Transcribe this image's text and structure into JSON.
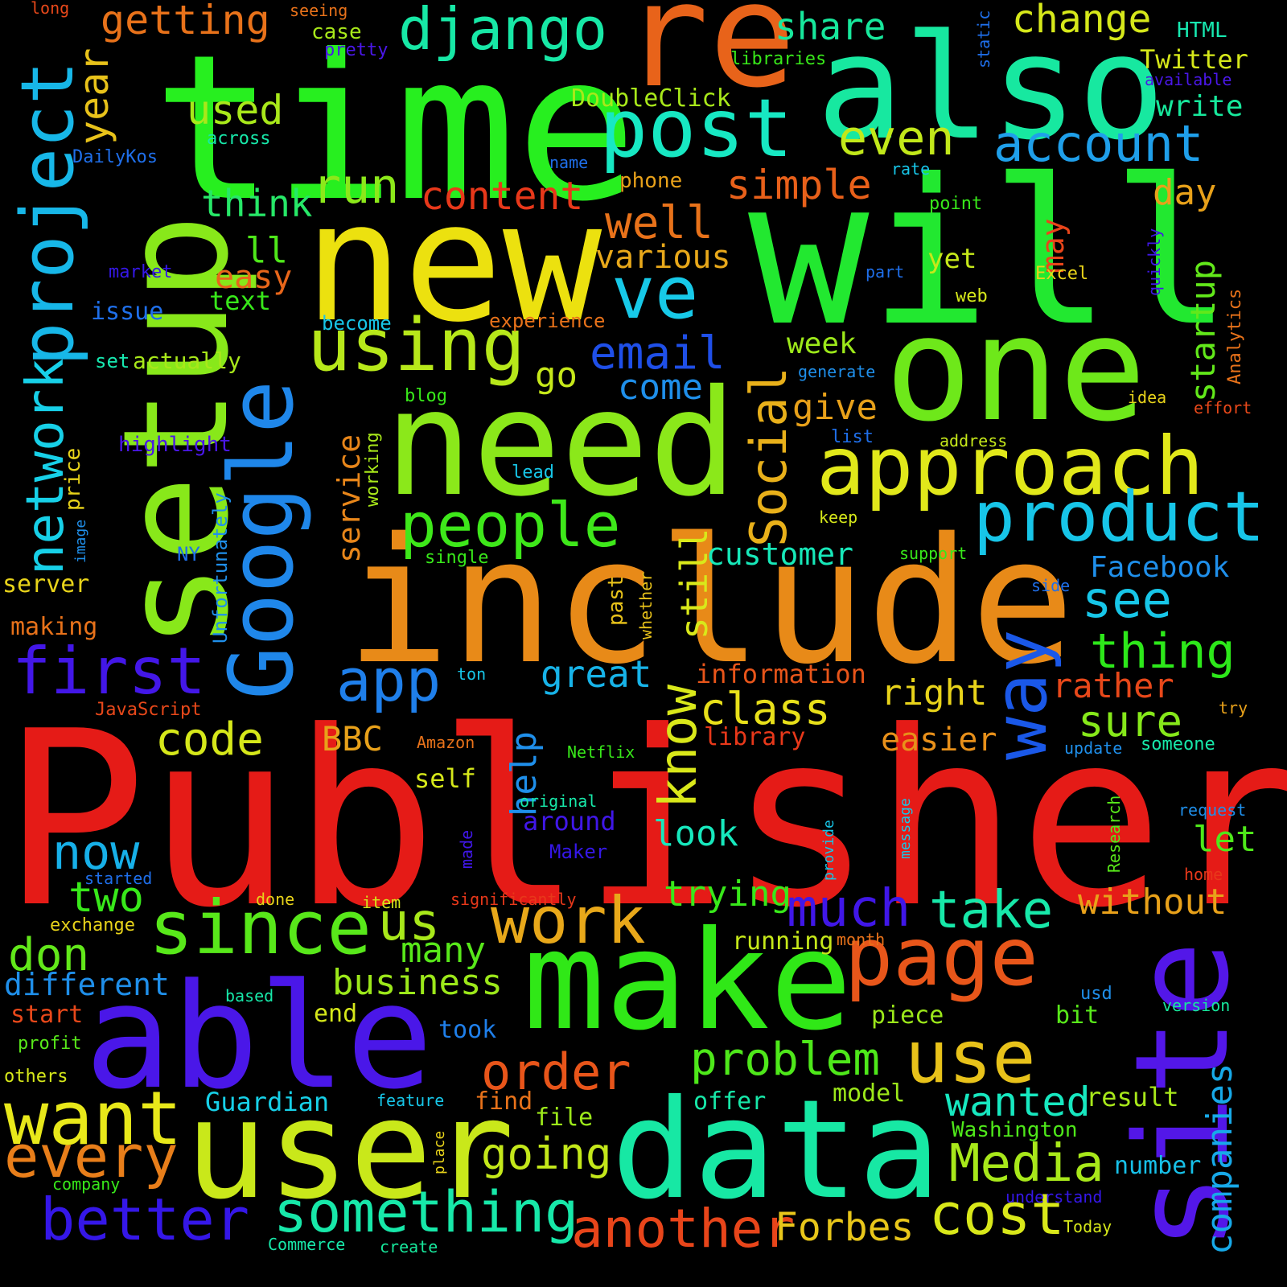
{
  "words": [
    {
      "text": "Publisher",
      "color": "#e51b17"
    },
    {
      "text": "time",
      "color": "#27ef1f"
    },
    {
      "text": "will",
      "color": "#22e830"
    },
    {
      "text": "new",
      "color": "#ece10f"
    },
    {
      "text": "include",
      "color": "#e88a18"
    },
    {
      "text": "need",
      "color": "#8be81a"
    },
    {
      "text": "setup",
      "color": "#88e81a"
    },
    {
      "text": "also",
      "color": "#17e8a0"
    },
    {
      "text": "re",
      "color": "#e8631a"
    },
    {
      "text": "one",
      "color": "#6ee81a"
    },
    {
      "text": "able",
      "color": "#4a17e8"
    },
    {
      "text": "user",
      "color": "#c9e81a"
    },
    {
      "text": "data",
      "color": "#17e8a4"
    },
    {
      "text": "make",
      "color": "#30e817"
    },
    {
      "text": "site",
      "color": "#5317e8"
    },
    {
      "text": "Google",
      "color": "#1f87ea"
    },
    {
      "text": "post",
      "color": "#17e8c3"
    },
    {
      "text": "approach",
      "color": "#e1e81a"
    },
    {
      "text": "using",
      "color": "#b7e81a"
    },
    {
      "text": "project",
      "color": "#17b7e8"
    },
    {
      "text": "page",
      "color": "#e8561a"
    },
    {
      "text": "way",
      "color": "#1a58e8"
    },
    {
      "text": "product",
      "color": "#17c5e8"
    },
    {
      "text": "ve",
      "color": "#17c9e8"
    },
    {
      "text": "django",
      "color": "#17e8a6"
    },
    {
      "text": "people",
      "color": "#3ee81a"
    },
    {
      "text": "since",
      "color": "#58e81a"
    },
    {
      "text": "want",
      "color": "#e8e81a"
    },
    {
      "text": "work",
      "color": "#e8a81a"
    },
    {
      "text": "use",
      "color": "#e8c21a"
    },
    {
      "text": "first",
      "color": "#4317e8"
    },
    {
      "text": "network",
      "color": "#17d0e8"
    },
    {
      "text": "better",
      "color": "#3517e8"
    },
    {
      "text": "something",
      "color": "#17e8a9"
    },
    {
      "text": "another",
      "color": "#e8451a"
    },
    {
      "text": "cost",
      "color": "#d9e81a"
    },
    {
      "text": "Media",
      "color": "#a8e81a"
    },
    {
      "text": "every",
      "color": "#e87e1a"
    },
    {
      "text": "Social",
      "color": "#e8b01a"
    },
    {
      "text": "account",
      "color": "#1f9fea"
    },
    {
      "text": "know",
      "color": "#d9e81a"
    },
    {
      "text": "app",
      "color": "#1f7fea"
    },
    {
      "text": "email",
      "color": "#1f4fe8"
    },
    {
      "text": "much",
      "color": "#4017e8"
    },
    {
      "text": "take",
      "color": "#17e8a9"
    },
    {
      "text": "order",
      "color": "#e8551a"
    },
    {
      "text": "problem",
      "color": "#4ee81a"
    },
    {
      "text": "companies",
      "color": "#17a9e8"
    },
    {
      "text": "Forbes",
      "color": "#e8c61a"
    },
    {
      "text": "going",
      "color": "#c4e81a"
    },
    {
      "text": "wanted",
      "color": "#17e8c0"
    },
    {
      "text": "without",
      "color": "#e8a11a"
    },
    {
      "text": "year",
      "color": "#e8c21a"
    },
    {
      "text": "content",
      "color": "#e8381a"
    },
    {
      "text": "even",
      "color": "#c2e81a"
    },
    {
      "text": "simple",
      "color": "#e8601a"
    },
    {
      "text": "run",
      "color": "#8ce81a"
    },
    {
      "text": "well",
      "color": "#e8721a"
    },
    {
      "text": "getting",
      "color": "#e8721a"
    },
    {
      "text": "change",
      "color": "#d6e81a"
    },
    {
      "text": "share",
      "color": "#17e89c"
    },
    {
      "text": "used",
      "color": "#a8e81a"
    },
    {
      "text": "don",
      "color": "#62e81a"
    },
    {
      "text": "different",
      "color": "#1f8fea"
    },
    {
      "text": "two",
      "color": "#38e81a"
    },
    {
      "text": "now",
      "color": "#17b0e8"
    },
    {
      "text": "us",
      "color": "#a8e81a"
    },
    {
      "text": "code",
      "color": "#d6e81a"
    },
    {
      "text": "business",
      "color": "#9ce81a"
    },
    {
      "text": "many",
      "color": "#58e81a"
    },
    {
      "text": "see",
      "color": "#17c6e8"
    },
    {
      "text": "thing",
      "color": "#2de81a"
    },
    {
      "text": "sure",
      "color": "#86e81a"
    },
    {
      "text": "class",
      "color": "#e8e01a"
    },
    {
      "text": "great",
      "color": "#17b3e8"
    },
    {
      "text": "right",
      "color": "#e8d31a"
    },
    {
      "text": "customer",
      "color": "#17e8b9"
    },
    {
      "text": "Facebook",
      "color": "#1f8fea"
    },
    {
      "text": "still",
      "color": "#d9e81a"
    },
    {
      "text": "help",
      "color": "#1f8fea"
    },
    {
      "text": "startup",
      "color": "#62e81a"
    },
    {
      "text": "service",
      "color": "#e8861a"
    },
    {
      "text": "give",
      "color": "#e8a11a"
    },
    {
      "text": "go",
      "color": "#c6e81a"
    },
    {
      "text": "come",
      "color": "#1f8fea"
    },
    {
      "text": "look",
      "color": "#17e8bd"
    },
    {
      "text": "trying",
      "color": "#38e81a"
    },
    {
      "text": "easier",
      "color": "#e8901a"
    },
    {
      "text": "rather",
      "color": "#e8481a"
    },
    {
      "text": "let",
      "color": "#4fe81a"
    },
    {
      "text": "day",
      "color": "#e8a11a"
    },
    {
      "text": "think",
      "color": "#27e868"
    },
    {
      "text": "ll",
      "color": "#4fe81a"
    },
    {
      "text": "easy",
      "color": "#e8661a"
    },
    {
      "text": "various",
      "color": "#e8a81a"
    },
    {
      "text": "week",
      "color": "#9ce81a"
    },
    {
      "text": "may",
      "color": "#e8451a"
    },
    {
      "text": "yet",
      "color": "#c6e81a"
    },
    {
      "text": "BBC",
      "color": "#e8a11a"
    },
    {
      "text": "self",
      "color": "#d6e81a"
    },
    {
      "text": "around",
      "color": "#4017e8"
    },
    {
      "text": "running",
      "color": "#c6e81a"
    },
    {
      "text": "Guardian",
      "color": "#17d0e8"
    },
    {
      "text": "model",
      "color": "#9ce81a"
    },
    {
      "text": "result",
      "color": "#a8e81a"
    },
    {
      "text": "number",
      "color": "#17c0e8"
    },
    {
      "text": "file",
      "color": "#9ce81a"
    },
    {
      "text": "find",
      "color": "#e8721a"
    },
    {
      "text": "offer",
      "color": "#17e8a9"
    },
    {
      "text": "piece",
      "color": "#9ce81a"
    },
    {
      "text": "bit",
      "color": "#58e81a"
    },
    {
      "text": "Washington",
      "color": "#4fe81a"
    },
    {
      "text": "information",
      "color": "#e8551a"
    },
    {
      "text": "library",
      "color": "#e8381a"
    },
    {
      "text": "start",
      "color": "#e8481a"
    },
    {
      "text": "end",
      "color": "#d6e81a"
    },
    {
      "text": "took",
      "color": "#1f7fea"
    },
    {
      "text": "making",
      "color": "#e8721a"
    },
    {
      "text": "server",
      "color": "#e8d31a"
    },
    {
      "text": "highlight",
      "color": "#4a17e8"
    },
    {
      "text": "issue",
      "color": "#1f6fea"
    },
    {
      "text": "text",
      "color": "#38e81a"
    },
    {
      "text": "actually",
      "color": "#a8e81a"
    },
    {
      "text": "set",
      "color": "#17e8b0"
    },
    {
      "text": "price",
      "color": "#e8d31a"
    },
    {
      "text": "market",
      "color": "#3517e8"
    },
    {
      "text": "become",
      "color": "#17c6e8"
    },
    {
      "text": "experience",
      "color": "#e8721a"
    },
    {
      "text": "working",
      "color": "#a8e81a"
    },
    {
      "text": "blog",
      "color": "#38e81a"
    },
    {
      "text": "lead",
      "color": "#17c6e8"
    },
    {
      "text": "single",
      "color": "#38e81a"
    },
    {
      "text": "Unfortunately",
      "color": "#1f8fea"
    },
    {
      "text": "past",
      "color": "#e8c21a"
    },
    {
      "text": "whether",
      "color": "#e8c21a"
    },
    {
      "text": "NY",
      "color": "#1f6fea"
    },
    {
      "text": "image",
      "color": "#1f8fea"
    },
    {
      "text": "DoubleClick",
      "color": "#a8e81a"
    },
    {
      "text": "libraries",
      "color": "#38e81a"
    },
    {
      "text": "Twitter",
      "color": "#d6e81a"
    },
    {
      "text": "HTML",
      "color": "#17e8b0"
    },
    {
      "text": "write",
      "color": "#17e89c"
    },
    {
      "text": "available",
      "color": "#4a17e8"
    },
    {
      "text": "static",
      "color": "#1f6fea"
    },
    {
      "text": "case",
      "color": "#a8e81a"
    },
    {
      "text": "pretty",
      "color": "#4a17e8"
    },
    {
      "text": "long",
      "color": "#e8481a"
    },
    {
      "text": "seeing",
      "color": "#e8721a"
    },
    {
      "text": "across",
      "color": "#17e8a9"
    },
    {
      "text": "DailyKos",
      "color": "#1f6fea"
    },
    {
      "text": "name",
      "color": "#1f6fea"
    },
    {
      "text": "phone",
      "color": "#e8a11a"
    },
    {
      "text": "rate",
      "color": "#17c6e8"
    },
    {
      "text": "point",
      "color": "#38e81a"
    },
    {
      "text": "quickly",
      "color": "#4017e8"
    },
    {
      "text": "Analytics",
      "color": "#e8721a"
    },
    {
      "text": "Excel",
      "color": "#e8d31a"
    },
    {
      "text": "part",
      "color": "#1f6fea"
    },
    {
      "text": "web",
      "color": "#d6e81a"
    },
    {
      "text": "generate",
      "color": "#1f8fea"
    },
    {
      "text": "idea",
      "color": "#e8d31a"
    },
    {
      "text": "effort",
      "color": "#e8481a"
    },
    {
      "text": "list",
      "color": "#1f6fea"
    },
    {
      "text": "address",
      "color": "#c6e81a"
    },
    {
      "text": "keep",
      "color": "#d6e81a"
    },
    {
      "text": "support",
      "color": "#38e81a"
    },
    {
      "text": "side",
      "color": "#1f6fea"
    },
    {
      "text": "ton",
      "color": "#17c6e8"
    },
    {
      "text": "JavaScript",
      "color": "#e8481a"
    },
    {
      "text": "Amazon",
      "color": "#e8721a"
    },
    {
      "text": "Netflix",
      "color": "#38e81a"
    },
    {
      "text": "original",
      "color": "#17e8a9"
    },
    {
      "text": "made",
      "color": "#4017e8"
    },
    {
      "text": "Maker",
      "color": "#3517e8"
    },
    {
      "text": "provide",
      "color": "#17c6e8"
    },
    {
      "text": "message",
      "color": "#17c6e8"
    },
    {
      "text": "Research",
      "color": "#58e81a"
    },
    {
      "text": "try",
      "color": "#e8a11a"
    },
    {
      "text": "update",
      "color": "#1f8fea"
    },
    {
      "text": "someone",
      "color": "#17e8a9"
    },
    {
      "text": "request",
      "color": "#1f8fea"
    },
    {
      "text": "home",
      "color": "#e8381a"
    },
    {
      "text": "started",
      "color": "#1f6fea"
    },
    {
      "text": "done",
      "color": "#e8d31a"
    },
    {
      "text": "item",
      "color": "#d6e81a"
    },
    {
      "text": "significantly",
      "color": "#e8381a"
    },
    {
      "text": "month",
      "color": "#e8721a"
    },
    {
      "text": "exchange",
      "color": "#e8d31a"
    },
    {
      "text": "based",
      "color": "#17e8a9"
    },
    {
      "text": "usd",
      "color": "#1f8fea"
    },
    {
      "text": "version",
      "color": "#17e89c"
    },
    {
      "text": "profit",
      "color": "#58e81a"
    },
    {
      "text": "others",
      "color": "#d6e81a"
    },
    {
      "text": "feature",
      "color": "#17c6e8"
    },
    {
      "text": "place",
      "color": "#e8d31a"
    },
    {
      "text": "company",
      "color": "#38e81a"
    },
    {
      "text": "understand",
      "color": "#3517e8"
    },
    {
      "text": "Today",
      "color": "#d6e81a"
    },
    {
      "text": "Commerce",
      "color": "#17e8a9"
    },
    {
      "text": "create",
      "color": "#17e89c"
    }
  ]
}
